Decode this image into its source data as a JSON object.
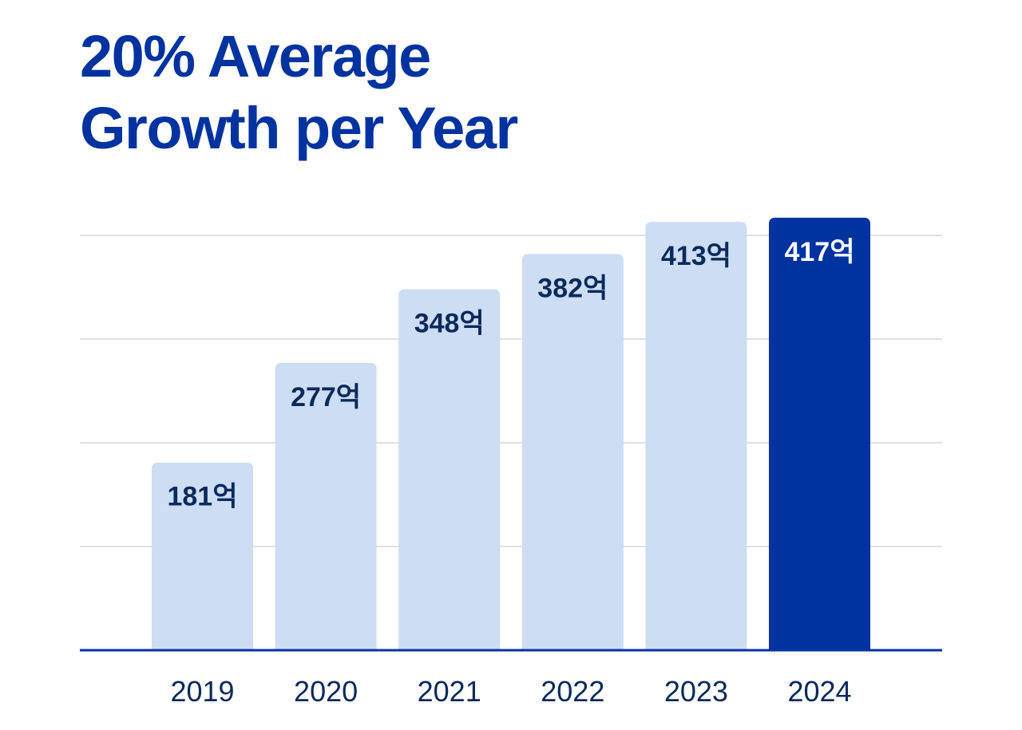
{
  "page": {
    "title_line1": "20% Average",
    "title_line2": "Growth per Year"
  },
  "colors": {
    "title": "#0033a0",
    "bar": "#cdddf3",
    "bar_highlight": "#0033a0",
    "bar_label": "#0a2a5c",
    "bar_label_highlight": "#ffffff",
    "tick_label": "#0a2a5c",
    "grid": "#cfcfcf",
    "axis": "#0033a0"
  },
  "chart_data": {
    "type": "bar",
    "title": "20% Average Growth per Year",
    "categories": [
      "2019",
      "2020",
      "2021",
      "2022",
      "2023",
      "2024"
    ],
    "values": [
      181,
      277,
      348,
      382,
      413,
      417
    ],
    "data_labels": [
      "181억",
      "277억",
      "348억",
      "382억",
      "413억",
      "417억"
    ],
    "highlight_index": 5,
    "xlabel": "",
    "ylabel": "",
    "ylim": [
      0,
      400
    ],
    "grid": true,
    "grid_values": [
      100,
      200,
      300,
      400
    ]
  }
}
